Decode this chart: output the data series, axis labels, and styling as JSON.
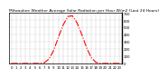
{
  "title": "Milwaukee Weather Average Solar Radiation per Hour W/m2 (Last 24 Hours)",
  "hours": [
    0,
    1,
    2,
    3,
    4,
    5,
    6,
    7,
    8,
    9,
    10,
    11,
    12,
    13,
    14,
    15,
    16,
    17,
    18,
    19,
    20,
    21,
    22,
    23
  ],
  "values": [
    0,
    0,
    0,
    0,
    0,
    0,
    0,
    10,
    60,
    180,
    360,
    530,
    650,
    660,
    560,
    400,
    220,
    80,
    15,
    0,
    0,
    0,
    0,
    0
  ],
  "line_color": "red",
  "line_style": "-.",
  "line_width": 0.8,
  "bg_color": "#ffffff",
  "plot_bg_color": "#ffffff",
  "grid_color": "#999999",
  "grid_style": "--",
  "ylim": [
    0,
    700
  ],
  "xlim": [
    -0.5,
    23.5
  ],
  "ytick_values": [
    0,
    100,
    200,
    300,
    400,
    500,
    600,
    700
  ],
  "xtick_values": [
    0,
    1,
    2,
    3,
    4,
    5,
    6,
    7,
    8,
    9,
    10,
    11,
    12,
    13,
    14,
    15,
    16,
    17,
    18,
    19,
    20,
    21,
    22,
    23
  ],
  "title_fontsize": 3.2,
  "tick_fontsize": 2.8,
  "spine_color": "#000000",
  "right_spine_color": "#000000"
}
